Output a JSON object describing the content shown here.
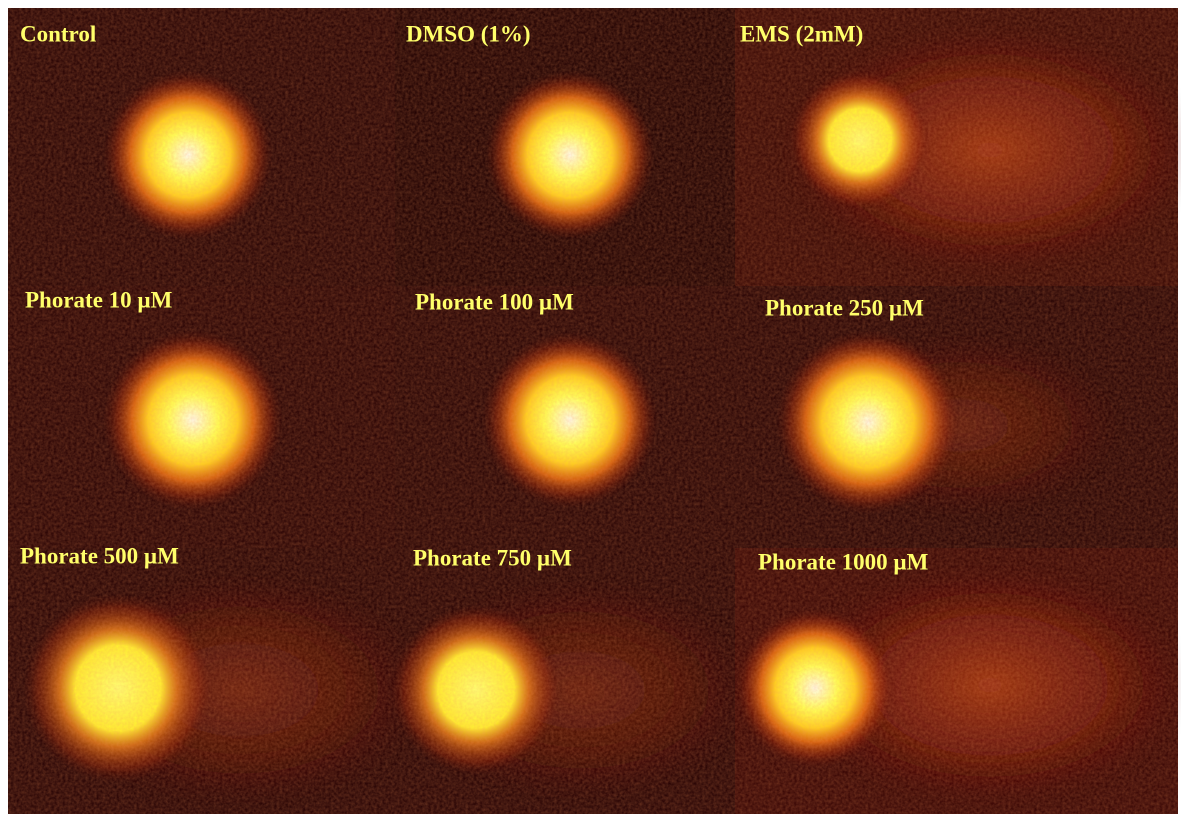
{
  "panels": [
    {
      "label": "Control"
    },
    {
      "label": "DMSO (1%)"
    },
    {
      "label": "EMS (2mM)"
    },
    {
      "label": "Phorate 10 µM"
    },
    {
      "label": "Phorate 100 µM"
    },
    {
      "label": "Phorate 250 µM"
    },
    {
      "label": "Phorate 500 µM"
    },
    {
      "label": "Phorate 750 µM"
    },
    {
      "label": "Phorate 1000 µM"
    }
  ]
}
